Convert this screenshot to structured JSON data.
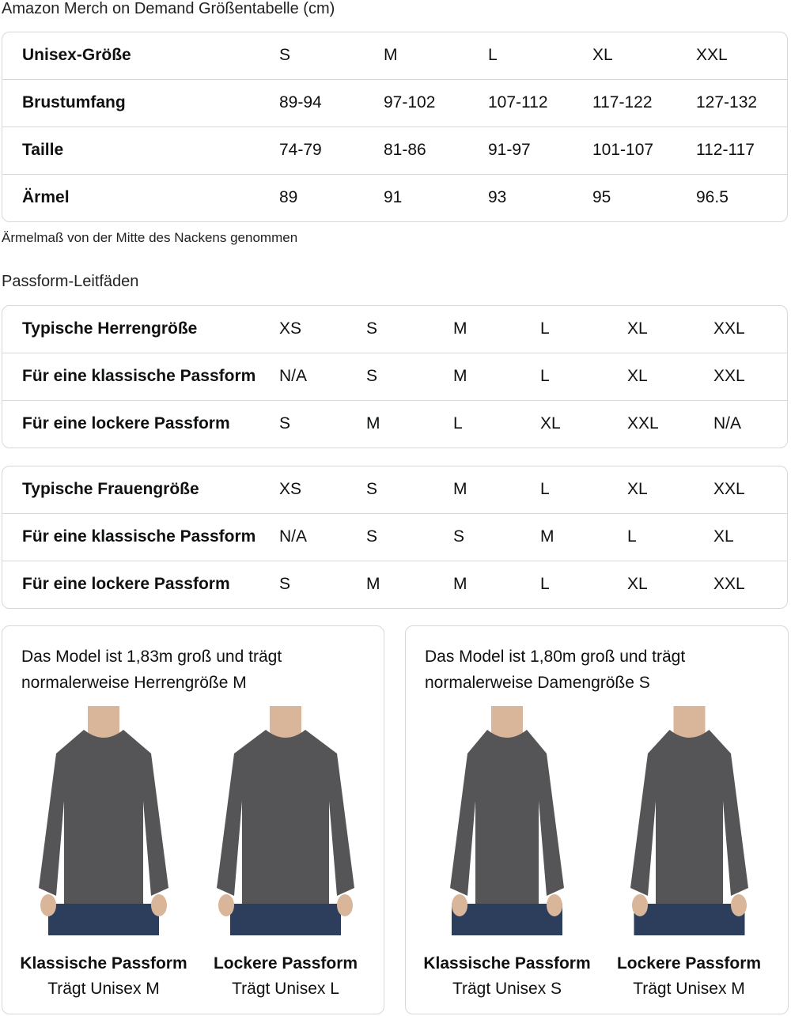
{
  "title": "Amazon Merch on Demand Größentabelle (cm)",
  "size_table": {
    "rows": [
      {
        "label": "Unisex-Größe",
        "values": [
          "S",
          "M",
          "L",
          "XL",
          "XXL"
        ]
      },
      {
        "label": "Brustumfang",
        "values": [
          "89-94",
          "97-102",
          "107-112",
          "117-122",
          "127-132"
        ]
      },
      {
        "label": "Taille",
        "values": [
          "74-79",
          "81-86",
          "91-97",
          "101-107",
          "112-117"
        ]
      },
      {
        "label": "Ärmel",
        "values": [
          "89",
          "91",
          "93",
          "95",
          "96.5"
        ]
      }
    ]
  },
  "note": "Ärmelmaß von der Mitte des Nackens genommen",
  "fit_heading": "Passform-Leitfäden",
  "men_table": {
    "rows": [
      {
        "label": "Typische Herrengröße",
        "values": [
          "XS",
          "S",
          "M",
          "L",
          "XL",
          "XXL"
        ]
      },
      {
        "label": "Für eine klassische Passform",
        "values": [
          "N/A",
          "S",
          "M",
          "L",
          "XL",
          "XXL"
        ]
      },
      {
        "label": "Für eine lockere Passform",
        "values": [
          "S",
          "M",
          "L",
          "XL",
          "XXL",
          "N/A"
        ]
      }
    ]
  },
  "women_table": {
    "rows": [
      {
        "label": "Typische Frauengröße",
        "values": [
          "XS",
          "S",
          "M",
          "L",
          "XL",
          "XXL"
        ]
      },
      {
        "label": "Für eine klassische Passform",
        "values": [
          "N/A",
          "S",
          "S",
          "M",
          "L",
          "XL"
        ]
      },
      {
        "label": "Für eine lockere Passform",
        "values": [
          "S",
          "M",
          "M",
          "L",
          "XL",
          "XXL"
        ]
      }
    ]
  },
  "cards": [
    {
      "caption": "Das Model ist 1,83m groß und trägt normalerweise Herrengröße M",
      "figures": [
        {
          "title": "Klassische Passform",
          "subtitle": "Trägt Unisex M"
        },
        {
          "title": "Lockere Passform",
          "subtitle": "Trägt Unisex L"
        }
      ]
    },
    {
      "caption": "Das Model ist 1,80m groß und trägt normalerweise Damengröße S",
      "figures": [
        {
          "title": "Klassische Passform",
          "subtitle": "Trägt Unisex S"
        },
        {
          "title": "Lockere Passform",
          "subtitle": "Trägt Unisex M"
        }
      ]
    }
  ],
  "colors": {
    "sweater": "#555557",
    "jeans": "#2c3e5c",
    "border": "#d5d9d9"
  }
}
